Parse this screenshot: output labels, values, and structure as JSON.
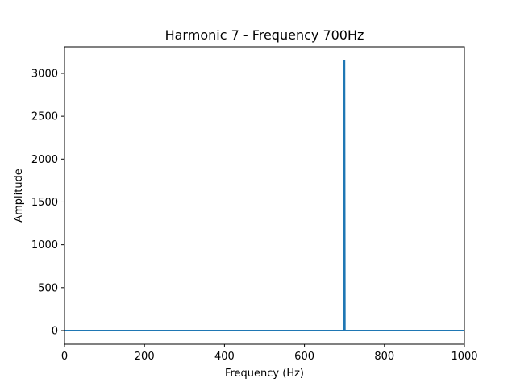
{
  "chart_data": {
    "type": "line",
    "title": "Harmonic 7 - Frequency 700Hz",
    "xlabel": "Frequency (Hz)",
    "ylabel": "Amplitude",
    "xlim": [
      0,
      1000
    ],
    "ylim": [
      -160,
      3310
    ],
    "xticks": [
      0,
      200,
      400,
      600,
      800,
      1000
    ],
    "yticks": [
      0,
      500,
      1000,
      1500,
      2000,
      2500,
      3000
    ],
    "grid": false,
    "series": [
      {
        "color": "#1f77b4",
        "x": [
          0,
          698,
          699,
          700,
          701,
          702,
          1000
        ],
        "y": [
          0,
          0,
          3150,
          3150,
          0,
          0,
          0
        ]
      }
    ]
  }
}
